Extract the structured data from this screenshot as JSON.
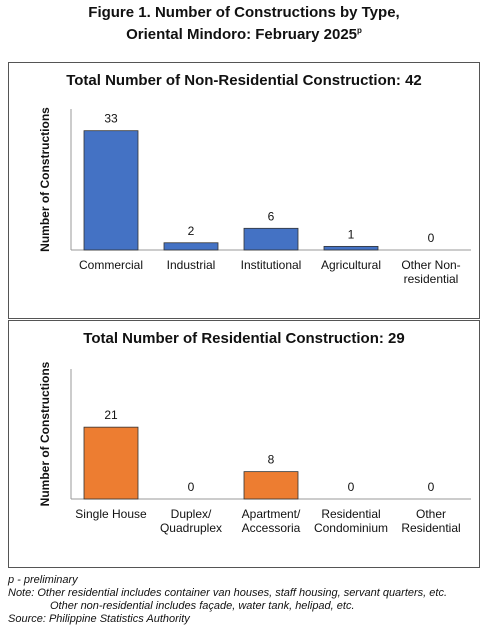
{
  "figure_title": "Figure 1. Number of Constructions by Type, Oriental Mindoro: February 2025",
  "figure_title_superscript": "p",
  "chart_data": [
    {
      "type": "bar",
      "title": "Total Number of Non-Residential Construction: 42",
      "y_label": "Number of Constructions",
      "categories": [
        "Commercial",
        "Industrial",
        "Institutional",
        "Agricultural",
        "Other Non-residential"
      ],
      "values": [
        33,
        2,
        6,
        1,
        0
      ],
      "color": "#4472c4",
      "ylim": [
        0,
        39
      ]
    },
    {
      "type": "bar",
      "title": "Total Number of Residential Construction: 29",
      "y_label": "Number of Constructions",
      "categories": [
        "Single House",
        "Duplex/ Quadruplex",
        "Apartment/ Accessoria",
        "Residential Condominium",
        "Other Residential"
      ],
      "values": [
        21,
        0,
        8,
        0,
        0
      ],
      "color": "#ed7d31",
      "ylim": [
        0,
        38
      ]
    }
  ],
  "notes": [
    "p - preliminary",
    "Note: Other residential includes container van houses, staff housing, servant quarters, etc.",
    "Other non-residential includes façade, water tank, helipad, etc.",
    "Source: Philippine Statistics Authority"
  ]
}
